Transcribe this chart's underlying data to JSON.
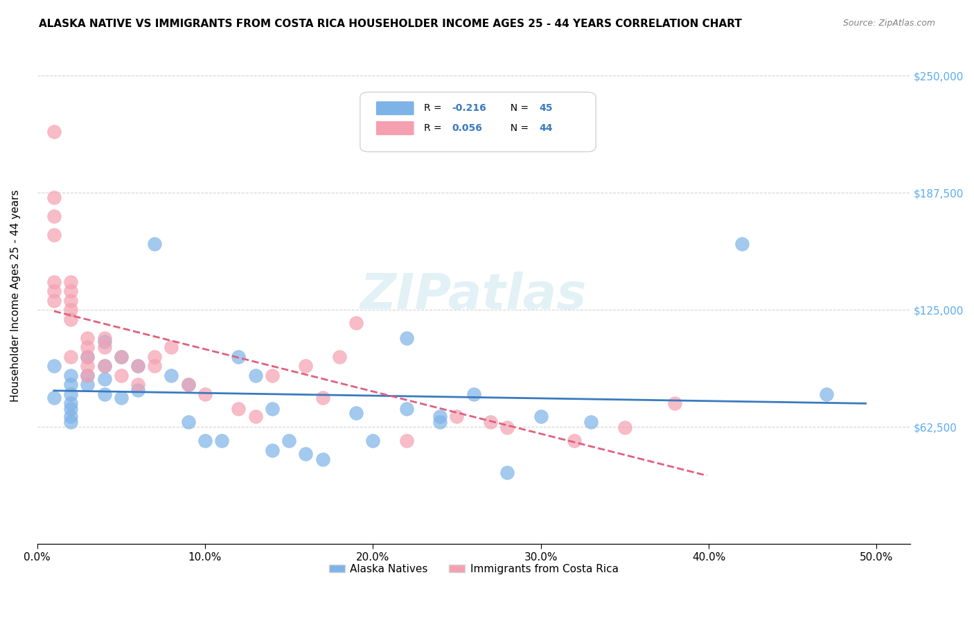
{
  "title": "ALASKA NATIVE VS IMMIGRANTS FROM COSTA RICA HOUSEHOLDER INCOME AGES 25 - 44 YEARS CORRELATION CHART",
  "source": "Source: ZipAtlas.com",
  "ylabel": "Householder Income Ages 25 - 44 years",
  "xlabel_ticks": [
    "0.0%",
    "10.0%",
    "20.0%",
    "30.0%",
    "40.0%",
    "50.0%"
  ],
  "xlabel_vals": [
    0.0,
    0.1,
    0.2,
    0.3,
    0.4,
    0.5
  ],
  "ytick_labels": [
    "$62,500",
    "$125,000",
    "$187,500",
    "$250,000"
  ],
  "ytick_vals": [
    62500,
    125000,
    187500,
    250000
  ],
  "ylim": [
    0,
    265000
  ],
  "xlim": [
    0.0,
    0.52
  ],
  "r_alaska": -0.216,
  "n_alaska": 45,
  "r_costarica": 0.056,
  "n_costarica": 44,
  "color_alaska": "#7EB3E8",
  "color_costarica": "#F5A0B0",
  "line_color_alaska": "#3A7ABF",
  "line_color_costarica": "#E06080",
  "watermark": "ZIPatlas",
  "alaska_x": [
    0.01,
    0.01,
    0.02,
    0.02,
    0.02,
    0.02,
    0.02,
    0.02,
    0.02,
    0.03,
    0.03,
    0.03,
    0.04,
    0.04,
    0.04,
    0.04,
    0.05,
    0.05,
    0.06,
    0.06,
    0.07,
    0.08,
    0.09,
    0.09,
    0.1,
    0.11,
    0.12,
    0.13,
    0.14,
    0.14,
    0.15,
    0.16,
    0.17,
    0.19,
    0.2,
    0.22,
    0.22,
    0.24,
    0.24,
    0.26,
    0.28,
    0.3,
    0.33,
    0.42,
    0.47
  ],
  "alaska_y": [
    95000,
    78000,
    90000,
    85000,
    80000,
    75000,
    72000,
    68000,
    65000,
    100000,
    90000,
    85000,
    95000,
    108000,
    88000,
    80000,
    100000,
    78000,
    95000,
    82000,
    160000,
    90000,
    85000,
    65000,
    55000,
    55000,
    100000,
    90000,
    72000,
    50000,
    55000,
    48000,
    45000,
    70000,
    55000,
    110000,
    72000,
    68000,
    65000,
    80000,
    38000,
    68000,
    65000,
    160000,
    80000
  ],
  "costarica_x": [
    0.01,
    0.01,
    0.01,
    0.01,
    0.01,
    0.01,
    0.01,
    0.02,
    0.02,
    0.02,
    0.02,
    0.02,
    0.02,
    0.03,
    0.03,
    0.03,
    0.03,
    0.03,
    0.04,
    0.04,
    0.04,
    0.05,
    0.05,
    0.06,
    0.06,
    0.07,
    0.07,
    0.08,
    0.09,
    0.1,
    0.12,
    0.13,
    0.14,
    0.16,
    0.17,
    0.18,
    0.19,
    0.22,
    0.25,
    0.27,
    0.28,
    0.32,
    0.35,
    0.38
  ],
  "costarica_y": [
    220000,
    185000,
    175000,
    165000,
    140000,
    135000,
    130000,
    140000,
    135000,
    130000,
    125000,
    120000,
    100000,
    110000,
    105000,
    100000,
    95000,
    90000,
    110000,
    105000,
    95000,
    100000,
    90000,
    95000,
    85000,
    100000,
    95000,
    105000,
    85000,
    80000,
    72000,
    68000,
    90000,
    95000,
    78000,
    100000,
    118000,
    55000,
    68000,
    65000,
    62000,
    55000,
    62000,
    75000
  ]
}
